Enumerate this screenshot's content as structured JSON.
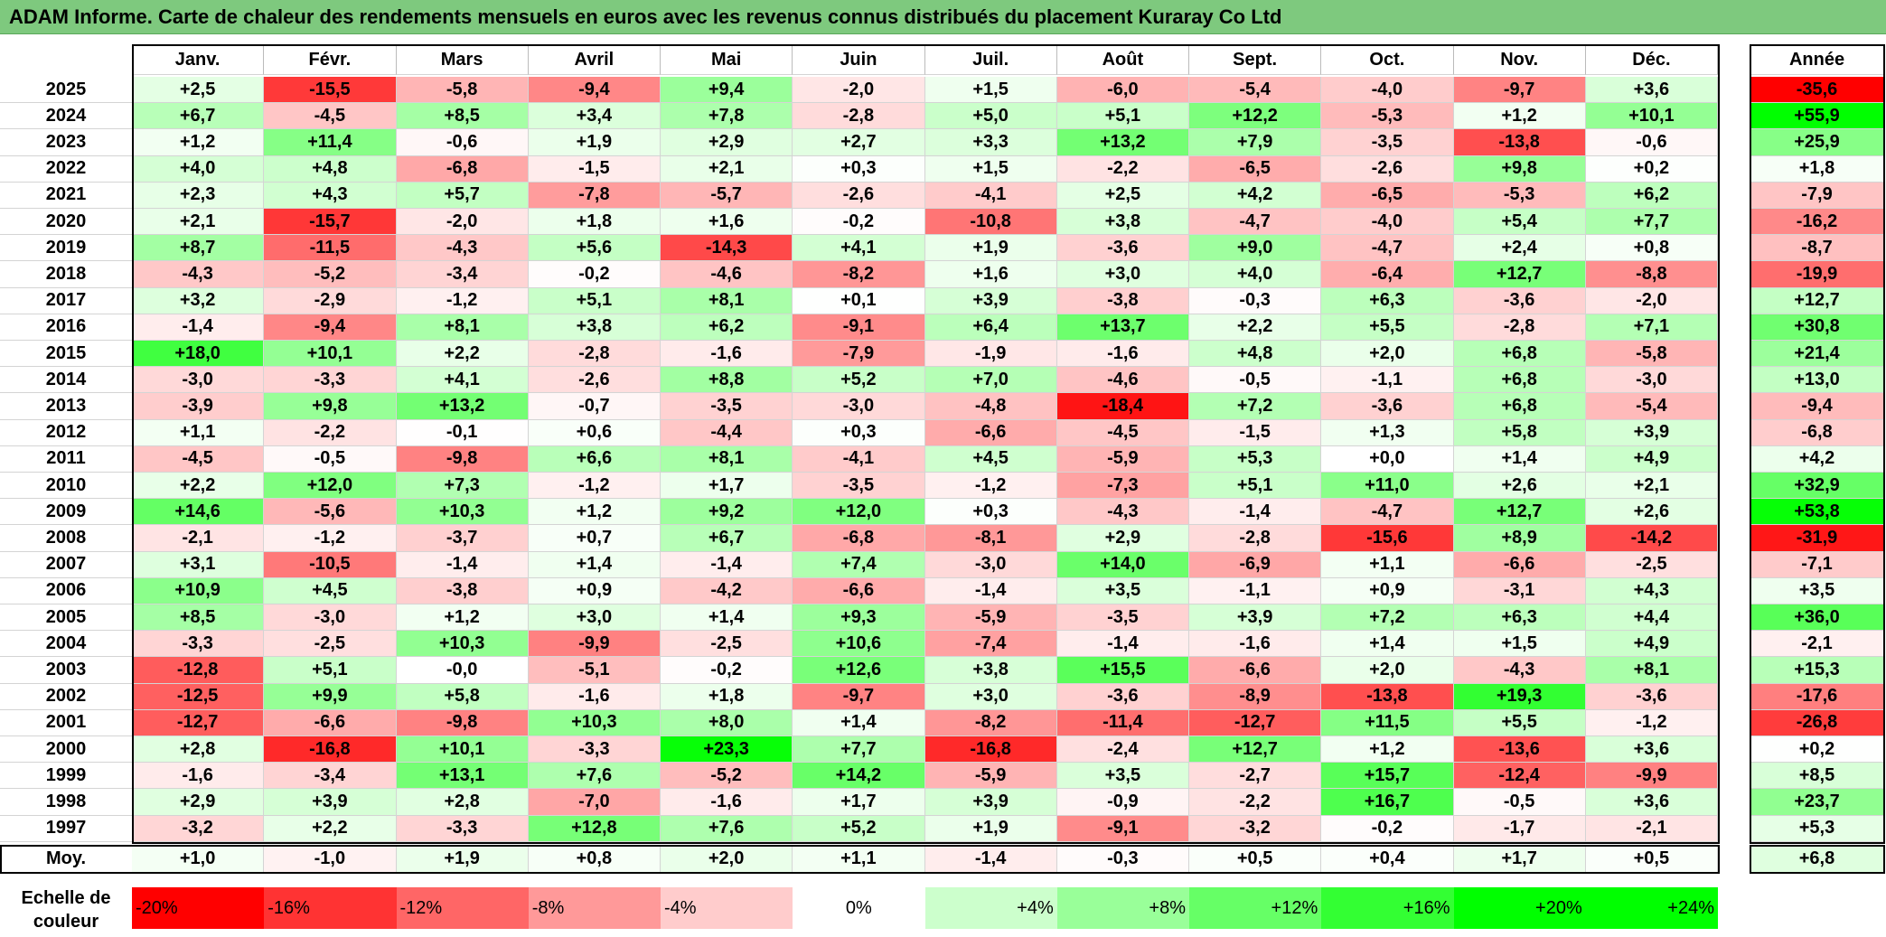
{
  "title": "ADAM Informe. Carte de chaleur des rendements mensuels en euros avec les revenus connus distribués du placement Kuraray Co Ltd",
  "chart_data": {
    "type": "heatmap",
    "title": "ADAM Informe. Carte de chaleur des rendements mensuels en euros avec les revenus connus distribués du placement Kuraray Co Ltd",
    "months": [
      "Janv.",
      "Févr.",
      "Mars",
      "Avril",
      "Mai",
      "Juin",
      "Juil.",
      "Août",
      "Sept.",
      "Oct.",
      "Nov.",
      "Déc."
    ],
    "year_header": "Année",
    "rows": [
      {
        "year": "2025",
        "values": [
          "+2,5",
          "-15,5",
          "-5,8",
          "-9,4",
          "+9,4",
          "-2,0",
          "+1,5",
          "-6,0",
          "-5,4",
          "-4,0",
          "-9,7",
          "+3,6"
        ],
        "annual": "-35,6"
      },
      {
        "year": "2024",
        "values": [
          "+6,7",
          "-4,5",
          "+8,5",
          "+3,4",
          "+7,8",
          "-2,8",
          "+5,0",
          "+5,1",
          "+12,2",
          "-5,3",
          "+1,2",
          "+10,1"
        ],
        "annual": "+55,9"
      },
      {
        "year": "2023",
        "values": [
          "+1,2",
          "+11,4",
          "-0,6",
          "+1,9",
          "+2,9",
          "+2,7",
          "+3,3",
          "+13,2",
          "+7,9",
          "-3,5",
          "-13,8",
          "-0,6"
        ],
        "annual": "+25,9"
      },
      {
        "year": "2022",
        "values": [
          "+4,0",
          "+4,8",
          "-6,8",
          "-1,5",
          "+2,1",
          "+0,3",
          "+1,5",
          "-2,2",
          "-6,5",
          "-2,6",
          "+9,8",
          "+0,2"
        ],
        "annual": "+1,8"
      },
      {
        "year": "2021",
        "values": [
          "+2,3",
          "+4,3",
          "+5,7",
          "-7,8",
          "-5,7",
          "-2,6",
          "-4,1",
          "+2,5",
          "+4,2",
          "-6,5",
          "-5,3",
          "+6,2"
        ],
        "annual": "-7,9"
      },
      {
        "year": "2020",
        "values": [
          "+2,1",
          "-15,7",
          "-2,0",
          "+1,8",
          "+1,6",
          "-0,2",
          "-10,8",
          "+3,8",
          "-4,7",
          "-4,0",
          "+5,4",
          "+7,7"
        ],
        "annual": "-16,2"
      },
      {
        "year": "2019",
        "values": [
          "+8,7",
          "-11,5",
          "-4,3",
          "+5,6",
          "-14,3",
          "+4,1",
          "+1,9",
          "-3,6",
          "+9,0",
          "-4,7",
          "+2,4",
          "+0,8"
        ],
        "annual": "-8,7"
      },
      {
        "year": "2018",
        "values": [
          "-4,3",
          "-5,2",
          "-3,4",
          "-0,2",
          "-4,6",
          "-8,2",
          "+1,6",
          "+3,0",
          "+4,0",
          "-6,4",
          "+12,7",
          "-8,8"
        ],
        "annual": "-19,9"
      },
      {
        "year": "2017",
        "values": [
          "+3,2",
          "-2,9",
          "-1,2",
          "+5,1",
          "+8,1",
          "+0,1",
          "+3,9",
          "-3,8",
          "-0,3",
          "+6,3",
          "-3,6",
          "-2,0"
        ],
        "annual": "+12,7"
      },
      {
        "year": "2016",
        "values": [
          "-1,4",
          "-9,4",
          "+8,1",
          "+3,8",
          "+6,2",
          "-9,1",
          "+6,4",
          "+13,7",
          "+2,2",
          "+5,5",
          "-2,8",
          "+7,1"
        ],
        "annual": "+30,8"
      },
      {
        "year": "2015",
        "values": [
          "+18,0",
          "+10,1",
          "+2,2",
          "-2,8",
          "-1,6",
          "-7,9",
          "-1,9",
          "-1,6",
          "+4,8",
          "+2,0",
          "+6,8",
          "-5,8"
        ],
        "annual": "+21,4"
      },
      {
        "year": "2014",
        "values": [
          "-3,0",
          "-3,3",
          "+4,1",
          "-2,6",
          "+8,8",
          "+5,2",
          "+7,0",
          "-4,6",
          "-0,5",
          "-1,1",
          "+6,8",
          "-3,0"
        ],
        "annual": "+13,0"
      },
      {
        "year": "2013",
        "values": [
          "-3,9",
          "+9,8",
          "+13,2",
          "-0,7",
          "-3,5",
          "-3,0",
          "-4,8",
          "-18,4",
          "+7,2",
          "-3,6",
          "+6,8",
          "-5,4"
        ],
        "annual": "-9,4"
      },
      {
        "year": "2012",
        "values": [
          "+1,1",
          "-2,2",
          "-0,1",
          "+0,6",
          "-4,4",
          "+0,3",
          "-6,6",
          "-4,5",
          "-1,5",
          "+1,3",
          "+5,8",
          "+3,9"
        ],
        "annual": "-6,8"
      },
      {
        "year": "2011",
        "values": [
          "-4,5",
          "-0,5",
          "-9,8",
          "+6,6",
          "+8,1",
          "-4,1",
          "+4,5",
          "-5,9",
          "+5,3",
          "+0,0",
          "+1,4",
          "+4,9"
        ],
        "annual": "+4,2"
      },
      {
        "year": "2010",
        "values": [
          "+2,2",
          "+12,0",
          "+7,3",
          "-1,2",
          "+1,7",
          "-3,5",
          "-1,2",
          "-7,3",
          "+5,1",
          "+11,0",
          "+2,6",
          "+2,1"
        ],
        "annual": "+32,9"
      },
      {
        "year": "2009",
        "values": [
          "+14,6",
          "-5,6",
          "+10,3",
          "+1,2",
          "+9,2",
          "+12,0",
          "+0,3",
          "-4,3",
          "-1,4",
          "-4,7",
          "+12,7",
          "+2,6"
        ],
        "annual": "+53,8"
      },
      {
        "year": "2008",
        "values": [
          "-2,1",
          "-1,2",
          "-3,7",
          "+0,7",
          "+6,7",
          "-6,8",
          "-8,1",
          "+2,9",
          "-2,8",
          "-15,6",
          "+8,9",
          "-14,2"
        ],
        "annual": "-31,9"
      },
      {
        "year": "2007",
        "values": [
          "+3,1",
          "-10,5",
          "-1,4",
          "+1,4",
          "-1,4",
          "+7,4",
          "-3,0",
          "+14,0",
          "-6,9",
          "+1,1",
          "-6,6",
          "-2,5"
        ],
        "annual": "-7,1"
      },
      {
        "year": "2006",
        "values": [
          "+10,9",
          "+4,5",
          "-3,8",
          "+0,9",
          "-4,2",
          "-6,6",
          "-1,4",
          "+3,5",
          "-1,1",
          "+0,9",
          "-3,1",
          "+4,3"
        ],
        "annual": "+3,5"
      },
      {
        "year": "2005",
        "values": [
          "+8,5",
          "-3,0",
          "+1,2",
          "+3,0",
          "+1,4",
          "+9,3",
          "-5,9",
          "-3,5",
          "+3,9",
          "+7,2",
          "+6,3",
          "+4,4"
        ],
        "annual": "+36,0"
      },
      {
        "year": "2004",
        "values": [
          "-3,3",
          "-2,5",
          "+10,3",
          "-9,9",
          "-2,5",
          "+10,6",
          "-7,4",
          "-1,4",
          "-1,6",
          "+1,4",
          "+1,5",
          "+4,9"
        ],
        "annual": "-2,1"
      },
      {
        "year": "2003",
        "values": [
          "-12,8",
          "+5,1",
          "-0,0",
          "-5,1",
          "-0,2",
          "+12,6",
          "+3,8",
          "+15,5",
          "-6,6",
          "+2,0",
          "-4,3",
          "+8,1"
        ],
        "annual": "+15,3"
      },
      {
        "year": "2002",
        "values": [
          "-12,5",
          "+9,9",
          "+5,8",
          "-1,6",
          "+1,8",
          "-9,7",
          "+3,0",
          "-3,6",
          "-8,9",
          "-13,8",
          "+19,3",
          "-3,6"
        ],
        "annual": "-17,6"
      },
      {
        "year": "2001",
        "values": [
          "-12,7",
          "-6,6",
          "-9,8",
          "+10,3",
          "+8,0",
          "+1,4",
          "-8,2",
          "-11,4",
          "-12,7",
          "+11,5",
          "+5,5",
          "-1,2"
        ],
        "annual": "-26,8"
      },
      {
        "year": "2000",
        "values": [
          "+2,8",
          "-16,8",
          "+10,1",
          "-3,3",
          "+23,3",
          "+7,7",
          "-16,8",
          "-2,4",
          "+12,7",
          "+1,2",
          "-13,6",
          "+3,6"
        ],
        "annual": "+0,2"
      },
      {
        "year": "1999",
        "values": [
          "-1,6",
          "-3,4",
          "+13,1",
          "+7,6",
          "-5,2",
          "+14,2",
          "-5,9",
          "+3,5",
          "-2,7",
          "+15,7",
          "-12,4",
          "-9,9"
        ],
        "annual": "+8,5"
      },
      {
        "year": "1998",
        "values": [
          "+2,9",
          "+3,9",
          "+2,8",
          "-7,0",
          "-1,6",
          "+1,7",
          "+3,9",
          "-0,9",
          "-2,2",
          "+16,7",
          "-0,5",
          "+3,6"
        ],
        "annual": "+23,7"
      },
      {
        "year": "1997",
        "values": [
          "-3,2",
          "+2,2",
          "-3,3",
          "+12,8",
          "+7,6",
          "+5,2",
          "+1,9",
          "-9,1",
          "-3,2",
          "-0,2",
          "-1,7",
          "-2,1"
        ],
        "annual": "+5,3"
      }
    ],
    "average": {
      "label": "Moy.",
      "values": [
        "+1,0",
        "-1,0",
        "+1,9",
        "+0,8",
        "+2,0",
        "+1,1",
        "-1,4",
        "-0,3",
        "+0,5",
        "+0,4",
        "+1,7",
        "+0,5"
      ],
      "annual": "+6,8"
    },
    "color_scale": {
      "label": "Echelle de couleur",
      "stops": [
        "-20%",
        "-16%",
        "-12%",
        "-8%",
        "-4%",
        "0%",
        "+4%",
        "+8%",
        "+12%",
        "+16%",
        "+20%",
        "+24%"
      ],
      "colors": [
        "#ff0000",
        "#ff3333",
        "#ff6666",
        "#ff9999",
        "#ffcccc",
        "#ffffff",
        "#ccffcc",
        "#99ff99",
        "#66ff66",
        "#33ff33",
        "#00ff00",
        "#00ff00"
      ]
    }
  }
}
